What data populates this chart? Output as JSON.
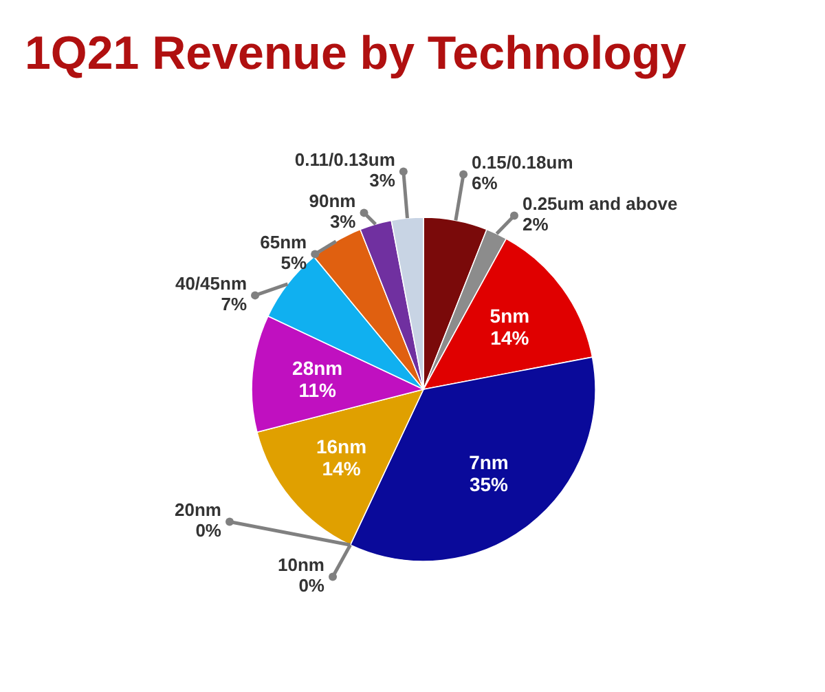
{
  "chart_data": {
    "type": "pie",
    "title": "1Q21 Revenue by Technology",
    "categories": [
      "0.15/0.18um",
      "0.25um and above",
      "5nm",
      "7nm",
      "10nm",
      "20nm",
      "16nm",
      "28nm",
      "40/45nm",
      "65nm",
      "90nm",
      "0.11/0.13um"
    ],
    "values": [
      6,
      2,
      14,
      35,
      0,
      0,
      14,
      11,
      7,
      5,
      3,
      3
    ],
    "value_labels": [
      "6%",
      "2%",
      "14%",
      "35%",
      "0%",
      "0%",
      "14%",
      "11%",
      "7%",
      "5%",
      "3%",
      "3%"
    ],
    "colors": [
      "#7a0a0a",
      "#8c8c8c",
      "#e00000",
      "#0a0a9a",
      "#333399",
      "#b0b000",
      "#e0a000",
      "#c010c0",
      "#10b0f0",
      "#e06010",
      "#7030a0",
      "#c8d4e4"
    ]
  }
}
